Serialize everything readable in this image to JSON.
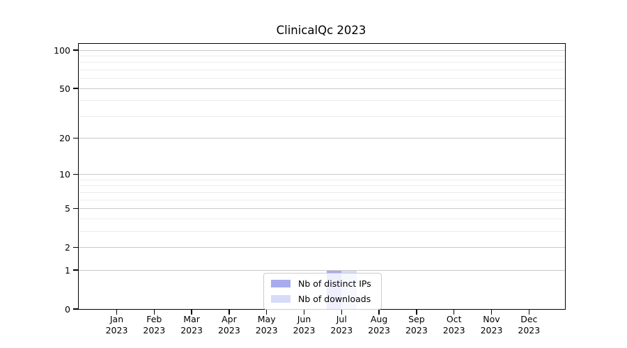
{
  "title": "ClinicalQc 2023",
  "chart_data": {
    "type": "bar",
    "title": "ClinicalQc 2023",
    "categories": [
      [
        "Jan",
        "2023"
      ],
      [
        "Feb",
        "2023"
      ],
      [
        "Mar",
        "2023"
      ],
      [
        "Apr",
        "2023"
      ],
      [
        "May",
        "2023"
      ],
      [
        "Jun",
        "2023"
      ],
      [
        "Jul",
        "2023"
      ],
      [
        "Aug",
        "2023"
      ],
      [
        "Sep",
        "2023"
      ],
      [
        "Oct",
        "2023"
      ],
      [
        "Nov",
        "2023"
      ],
      [
        "Dec",
        "2023"
      ]
    ],
    "series": [
      {
        "name": "Nb of distinct IPs",
        "color": "#a8abee",
        "values": [
          0,
          0,
          0,
          0,
          0,
          0,
          1,
          0,
          0,
          0,
          0,
          0
        ]
      },
      {
        "name": "Nb of downloads",
        "color": "#d8dbf8",
        "values": [
          0,
          0,
          0,
          0,
          0,
          0,
          1,
          0,
          0,
          0,
          0,
          0
        ]
      }
    ],
    "xlabel": "",
    "ylabel": "",
    "y_scale": "log10(1+y)",
    "ylim": [
      0,
      110
    ],
    "y_major_ticks": [
      0,
      1,
      2,
      5,
      10,
      20,
      50,
      100
    ],
    "y_minor_gridlines": [
      3,
      4,
      6,
      7,
      8,
      9,
      30,
      40,
      60,
      70,
      80,
      90
    ],
    "grid": "horizontal",
    "legend_position": "bottom-center",
    "colors": {
      "major_grid": "#c9c9c9",
      "minor_grid": "#ececec",
      "axis": "#000000",
      "background": "#ffffff"
    }
  }
}
